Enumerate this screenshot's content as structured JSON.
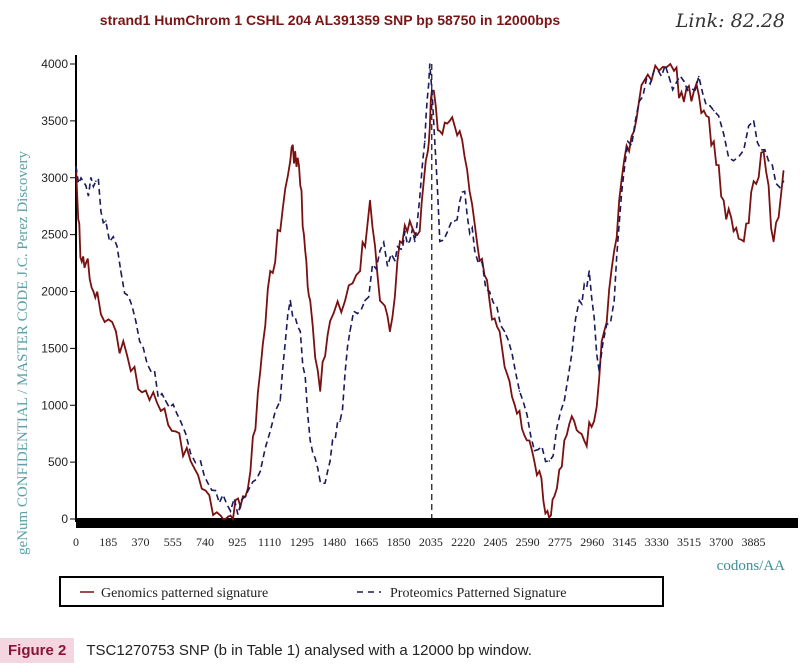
{
  "chart_data": {
    "type": "line",
    "title": "strand1 HumChrom  1 CSHL 204 AL391359  SNP bp 58750  in 12000bps",
    "annotation": "Link: 82.28",
    "xlabel": "codons/AA",
    "ylabel": "geNum CONFIDENTIAL / MASTER CODE J.C. Perez Discovery",
    "xlim": [
      0,
      4140
    ],
    "ylim": [
      0,
      4000
    ],
    "yticks": [
      "0",
      "500",
      "1000",
      "1500",
      "2000",
      "2500",
      "3000",
      "3500",
      "4000"
    ],
    "xticks": [
      "0",
      "185",
      "370",
      "555",
      "740",
      "925",
      "1110",
      "1295",
      "1480",
      "1665",
      "1850",
      "2035",
      "2220",
      "2405",
      "2590",
      "2775",
      "2960",
      "3145",
      "3330",
      "3515",
      "3700",
      "3885"
    ],
    "marker_line_x": 2040,
    "legend_position": "bottom",
    "series": [
      {
        "name": "Genomics patterned signature",
        "color": "#7a1010",
        "style": "solid",
        "points": [
          [
            0,
            3100
          ],
          [
            25,
            2300
          ],
          [
            57,
            2250
          ],
          [
            100,
            2000
          ],
          [
            143,
            1800
          ],
          [
            229,
            1650
          ],
          [
            314,
            1300
          ],
          [
            400,
            1130
          ],
          [
            486,
            950
          ],
          [
            571,
            770
          ],
          [
            657,
            510
          ],
          [
            743,
            250
          ],
          [
            829,
            30
          ],
          [
            886,
            30
          ],
          [
            943,
            110
          ],
          [
            1000,
            420
          ],
          [
            1057,
            1300
          ],
          [
            1114,
            2180
          ],
          [
            1171,
            2530
          ],
          [
            1229,
            3150
          ],
          [
            1257,
            3230
          ],
          [
            1286,
            2930
          ],
          [
            1314,
            2360
          ],
          [
            1343,
            1920
          ],
          [
            1400,
            1125
          ],
          [
            1457,
            1740
          ],
          [
            1543,
            1920
          ],
          [
            1629,
            2180
          ],
          [
            1686,
            2800
          ],
          [
            1743,
            1920
          ],
          [
            1800,
            1650
          ],
          [
            1857,
            2440
          ],
          [
            1914,
            2620
          ],
          [
            1971,
            2530
          ],
          [
            2017,
            3230
          ],
          [
            2040,
            3760
          ],
          [
            2086,
            3410
          ],
          [
            2143,
            3500
          ],
          [
            2200,
            3410
          ],
          [
            2257,
            2880
          ],
          [
            2314,
            2270
          ],
          [
            2371,
            1920
          ],
          [
            2429,
            1650
          ],
          [
            2486,
            1210
          ],
          [
            2543,
            950
          ],
          [
            2600,
            690
          ],
          [
            2657,
            420
          ],
          [
            2703,
            70
          ],
          [
            2743,
            200
          ],
          [
            2800,
            690
          ],
          [
            2857,
            860
          ],
          [
            2914,
            690
          ],
          [
            2971,
            860
          ],
          [
            3029,
            1650
          ],
          [
            3086,
            2360
          ],
          [
            3143,
            3150
          ],
          [
            3200,
            3410
          ],
          [
            3257,
            3850
          ],
          [
            3343,
            3940
          ],
          [
            3429,
            3940
          ],
          [
            3486,
            3670
          ],
          [
            3543,
            3760
          ],
          [
            3600,
            3590
          ],
          [
            3657,
            3320
          ],
          [
            3714,
            2800
          ],
          [
            3771,
            2530
          ],
          [
            3829,
            2440
          ],
          [
            3886,
            2970
          ],
          [
            3943,
            3230
          ],
          [
            4000,
            2440
          ],
          [
            4057,
            3060
          ]
        ]
      },
      {
        "name": "Proteomics Patterned Signature",
        "color": "#1a1a5a",
        "style": "dashed",
        "points": [
          [
            0,
            3100
          ],
          [
            57,
            2930
          ],
          [
            114,
            2970
          ],
          [
            171,
            2620
          ],
          [
            257,
            2180
          ],
          [
            343,
            1740
          ],
          [
            429,
            1300
          ],
          [
            514,
            1040
          ],
          [
            600,
            860
          ],
          [
            714,
            510
          ],
          [
            800,
            250
          ],
          [
            886,
            70
          ],
          [
            971,
            200
          ],
          [
            1057,
            420
          ],
          [
            1171,
            1040
          ],
          [
            1229,
            1920
          ],
          [
            1286,
            1650
          ],
          [
            1343,
            690
          ],
          [
            1400,
            330
          ],
          [
            1457,
            510
          ],
          [
            1514,
            860
          ],
          [
            1571,
            1650
          ],
          [
            1657,
            1920
          ],
          [
            1743,
            2360
          ],
          [
            1829,
            2270
          ],
          [
            1886,
            2530
          ],
          [
            1943,
            2440
          ],
          [
            2000,
            3320
          ],
          [
            2029,
            4000
          ],
          [
            2086,
            2440
          ],
          [
            2171,
            2620
          ],
          [
            2229,
            2880
          ],
          [
            2286,
            2360
          ],
          [
            2371,
            2000
          ],
          [
            2457,
            1650
          ],
          [
            2543,
            1125
          ],
          [
            2629,
            600
          ],
          [
            2714,
            510
          ],
          [
            2800,
            1040
          ],
          [
            2886,
            1920
          ],
          [
            2943,
            2180
          ],
          [
            3000,
            1300
          ],
          [
            3086,
            1920
          ],
          [
            3143,
            3060
          ],
          [
            3229,
            3670
          ],
          [
            3314,
            3940
          ],
          [
            3400,
            3890
          ],
          [
            3486,
            3850
          ],
          [
            3571,
            3890
          ],
          [
            3657,
            3590
          ],
          [
            3771,
            3150
          ],
          [
            3886,
            3500
          ],
          [
            3971,
            3150
          ],
          [
            4057,
            2970
          ]
        ]
      }
    ]
  },
  "legend": {
    "genomics": "Genomics patterned signature",
    "proteomics": "Proteomics Patterned Signature"
  },
  "caption": {
    "label": "Figure 2",
    "text": "TSC1270753 SNP (b in Table 1) analysed with a 12000 bp window."
  }
}
